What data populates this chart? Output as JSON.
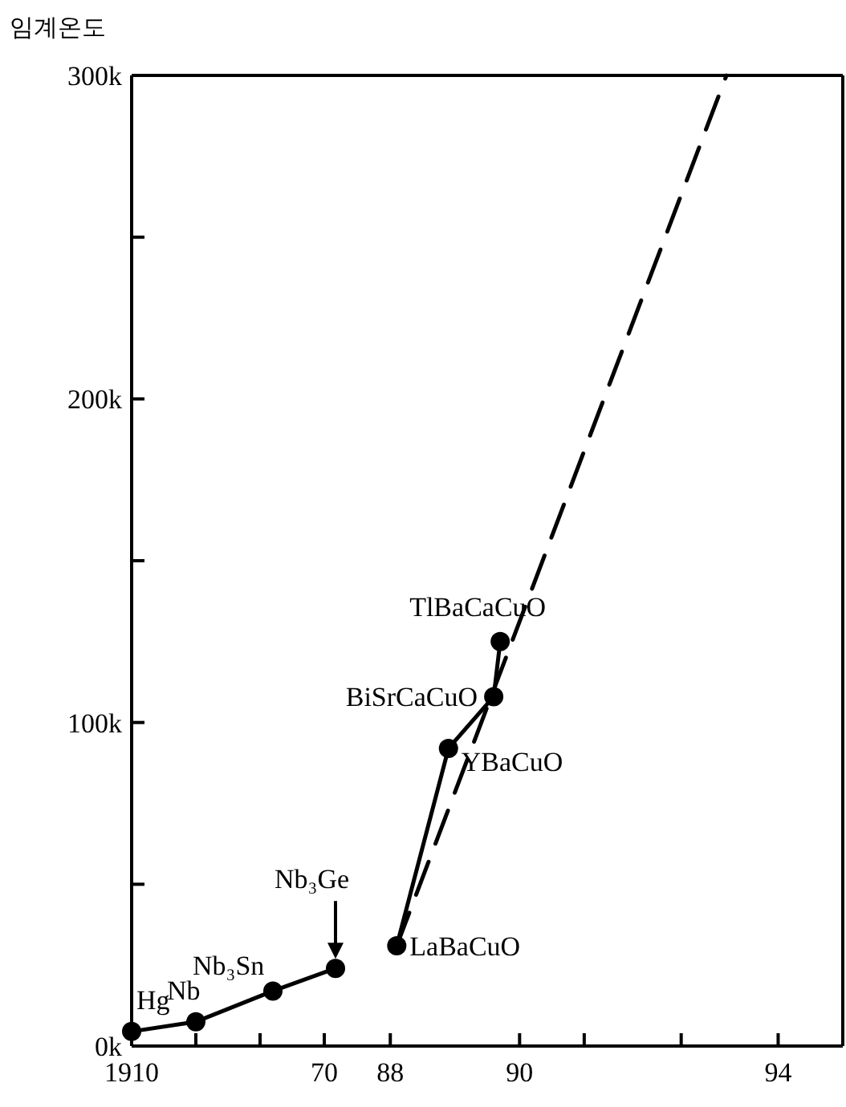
{
  "chart_data": [
    {
      "type": "line",
      "ylabel": "임계온도",
      "x": [
        1910,
        1930,
        1954,
        1973.5
      ],
      "series": [
        {
          "color": "#000000",
          "values": [
            4.5,
            7.5,
            17,
            24
          ],
          "marker": "circle",
          "line_style": "solid"
        }
      ],
      "xlim": [
        1910,
        1980.5
      ],
      "xticks": [
        {
          "value": 1910,
          "label": "1910"
        },
        {
          "value": 1930,
          "label": null
        },
        {
          "value": 1950,
          "label": null
        },
        {
          "value": 1970,
          "label": "70"
        }
      ],
      "ylim": [
        0,
        300
      ],
      "yticks": [
        {
          "value": 0,
          "label": "0k"
        },
        {
          "value": 50,
          "label": null
        },
        {
          "value": 100,
          "label": "100k"
        },
        {
          "value": 150,
          "label": null
        },
        {
          "value": 200,
          "label": "200k"
        },
        {
          "value": 250,
          "label": null
        },
        {
          "value": 300,
          "label": "300k"
        }
      ],
      "annotations": [
        {
          "text": "Hg",
          "x": 1910,
          "y": 4.5
        },
        {
          "text": "Nb",
          "x": 1930,
          "y": 7.5
        },
        {
          "text": "Nb₃Sn",
          "x": 1954,
          "y": 17
        },
        {
          "text": "Nb₃Ge",
          "x": 1973.5,
          "y": 24
        }
      ]
    },
    {
      "type": "line",
      "x": [
        1988.1,
        1988.9,
        1989.6,
        1989.7
      ],
      "series": [
        {
          "color": "#000000",
          "values": [
            31,
            92,
            108,
            125
          ],
          "marker": "circle",
          "line_style": "solid"
        },
        {
          "color": "#000000",
          "x": [
            1988.1,
            1993.2
          ],
          "values": [
            31,
            300
          ],
          "marker": "none",
          "line_style": "dashed"
        }
      ],
      "xlim": [
        1987.5,
        1995
      ],
      "xticks": [
        {
          "value": 1988,
          "label": "88"
        },
        {
          "value": 1990,
          "label": "90"
        },
        {
          "value": 1991,
          "label": null
        },
        {
          "value": 1992.5,
          "label": null
        },
        {
          "value": 1994,
          "label": "94"
        }
      ],
      "ylim": [
        0,
        300
      ],
      "tick_labels": "x",
      "annotations": [
        {
          "text": "LaBaCuO",
          "x": 1988.1,
          "y": 31
        },
        {
          "text": "YBaCuO",
          "x": 1988.9,
          "y": 92
        },
        {
          "text": "BiSrCaCuO",
          "x": 1989.6,
          "y": 108
        },
        {
          "text": "TlBaCaCuO",
          "x": 1989.7,
          "y": 125
        }
      ]
    }
  ]
}
